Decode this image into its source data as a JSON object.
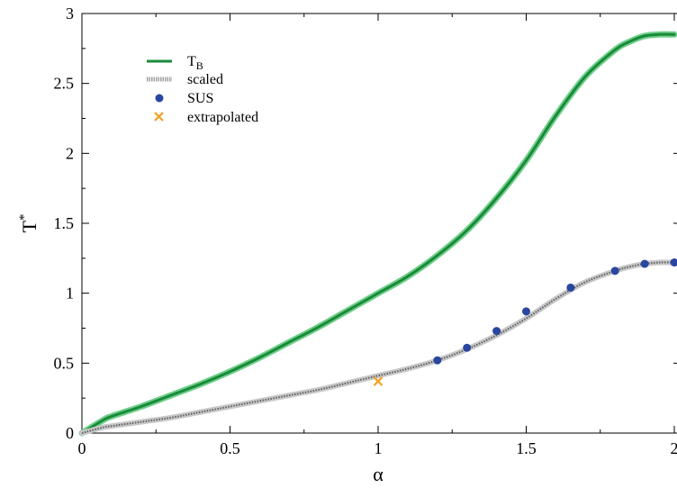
{
  "chart_data": {
    "type": "line",
    "xlabel": "α",
    "ylabel": "T",
    "ylabel_superscript": "*",
    "xlim": [
      0,
      2
    ],
    "ylim": [
      0,
      3
    ],
    "x_ticks": [
      0,
      0.5,
      1,
      1.5,
      2
    ],
    "x_tick_labels": [
      "0",
      "0.5",
      "1",
      "1.5",
      "2"
    ],
    "y_ticks": [
      0,
      0.5,
      1,
      1.5,
      2,
      2.5,
      3
    ],
    "y_tick_labels": [
      "0",
      "0.5",
      "1",
      "1.5",
      "2",
      "2.5",
      "3"
    ],
    "grid": false,
    "legend_position": "top-left",
    "series": [
      {
        "name": "T",
        "name_subscript": "B",
        "kind": "line",
        "color": "#1a8a3a",
        "x": [
          0,
          0.07,
          0.1,
          0.2,
          0.3,
          0.4,
          0.5,
          0.6,
          0.7,
          0.8,
          0.9,
          1.0,
          1.1,
          1.2,
          1.3,
          1.4,
          1.5,
          1.6,
          1.7,
          1.8,
          1.85,
          1.9,
          1.95,
          2.0
        ],
        "y": [
          0,
          0.09,
          0.12,
          0.19,
          0.27,
          0.35,
          0.44,
          0.54,
          0.65,
          0.76,
          0.88,
          1.0,
          1.12,
          1.27,
          1.45,
          1.68,
          1.95,
          2.27,
          2.55,
          2.74,
          2.8,
          2.84,
          2.85,
          2.85
        ]
      },
      {
        "name": "scaled",
        "kind": "line",
        "color": "#9a9a9a",
        "x": [
          0,
          0.07,
          0.1,
          0.2,
          0.3,
          0.4,
          0.5,
          0.6,
          0.7,
          0.8,
          0.9,
          1.0,
          1.1,
          1.2,
          1.3,
          1.4,
          1.5,
          1.6,
          1.7,
          1.8,
          1.85,
          1.9,
          1.95,
          2.0
        ],
        "y": [
          0,
          0.04,
          0.05,
          0.08,
          0.11,
          0.15,
          0.19,
          0.23,
          0.27,
          0.31,
          0.36,
          0.41,
          0.46,
          0.52,
          0.6,
          0.7,
          0.82,
          0.96,
          1.08,
          1.16,
          1.19,
          1.21,
          1.22,
          1.22
        ]
      },
      {
        "name": "SUS",
        "kind": "scatter",
        "marker": "circle",
        "color": "#2a46a0",
        "x": [
          1.2,
          1.3,
          1.4,
          1.5,
          1.65,
          1.8,
          1.9,
          2.0
        ],
        "y": [
          0.52,
          0.61,
          0.73,
          0.87,
          1.04,
          1.16,
          1.21,
          1.22
        ]
      },
      {
        "name": "extrapolated",
        "kind": "scatter",
        "marker": "x",
        "color": "#f0a020",
        "x": [
          1.0
        ],
        "y": [
          0.37
        ]
      }
    ]
  }
}
